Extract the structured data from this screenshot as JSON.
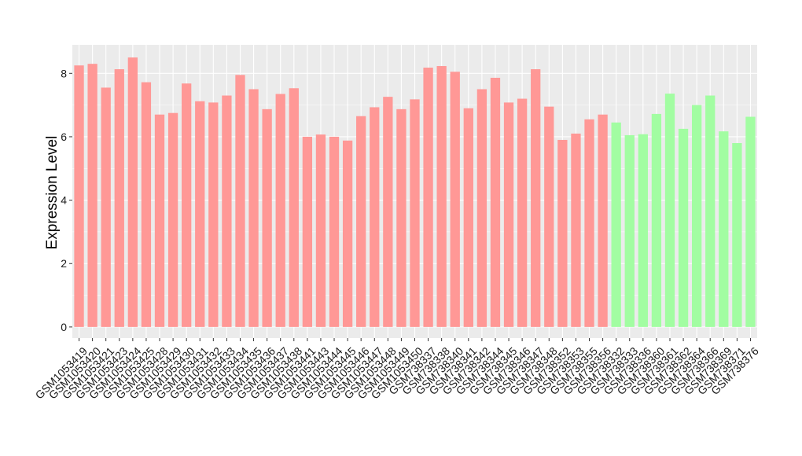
{
  "chart_data": {
    "type": "bar",
    "title": "",
    "xlabel": "",
    "ylabel": "Expression Level",
    "ylim": [
      -0.35,
      8.9
    ],
    "yticks": [
      0,
      2,
      4,
      6,
      8
    ],
    "grid": true,
    "legend": "none",
    "colors": {
      "group_1": "#ff9896",
      "group_2": "#a2fda2",
      "panel": "#ebebeb",
      "grid": "#ffffff"
    },
    "categories": [
      "GSM1053419",
      "GSM1053420",
      "GSM1053421",
      "GSM1053423",
      "GSM1053424",
      "GSM1053425",
      "GSM1053428",
      "GSM1053429",
      "GSM1053430",
      "GSM1053431",
      "GSM1053432",
      "GSM1053433",
      "GSM1053434",
      "GSM1053435",
      "GSM1053436",
      "GSM1053437",
      "GSM1053438",
      "GSM1053441",
      "GSM1053443",
      "GSM1053444",
      "GSM1053445",
      "GSM1053446",
      "GSM1053447",
      "GSM1053448",
      "GSM1053449",
      "GSM1053450",
      "GSM738337",
      "GSM738338",
      "GSM738340",
      "GSM738341",
      "GSM738342",
      "GSM738344",
      "GSM738345",
      "GSM738346",
      "GSM738347",
      "GSM738348",
      "GSM738352",
      "GSM738353",
      "GSM738355",
      "GSM738356",
      "GSM738332",
      "GSM738333",
      "GSM738336",
      "GSM738360",
      "GSM738361",
      "GSM738362",
      "GSM738364",
      "GSM738366",
      "GSM738369",
      "GSM738371",
      "GSM738376"
    ],
    "values": [
      8.25,
      8.3,
      7.55,
      8.13,
      8.5,
      7.72,
      6.7,
      6.75,
      7.68,
      7.12,
      7.08,
      7.3,
      7.95,
      7.5,
      6.87,
      7.35,
      7.53,
      6.0,
      6.07,
      6.0,
      5.88,
      6.65,
      6.93,
      7.26,
      6.87,
      7.18,
      8.18,
      8.23,
      8.05,
      6.9,
      7.5,
      7.86,
      7.08,
      7.2,
      8.13,
      6.95,
      5.9,
      6.1,
      6.55,
      6.7,
      6.45,
      6.05,
      6.08,
      6.72,
      7.36,
      6.25,
      7.0,
      7.3,
      6.17,
      5.8,
      6.63
    ],
    "groups": [
      1,
      1,
      1,
      1,
      1,
      1,
      1,
      1,
      1,
      1,
      1,
      1,
      1,
      1,
      1,
      1,
      1,
      1,
      1,
      1,
      1,
      1,
      1,
      1,
      1,
      1,
      1,
      1,
      1,
      1,
      1,
      1,
      1,
      1,
      1,
      1,
      1,
      1,
      1,
      1,
      2,
      2,
      2,
      2,
      2,
      2,
      2,
      2,
      2,
      2,
      2
    ]
  }
}
